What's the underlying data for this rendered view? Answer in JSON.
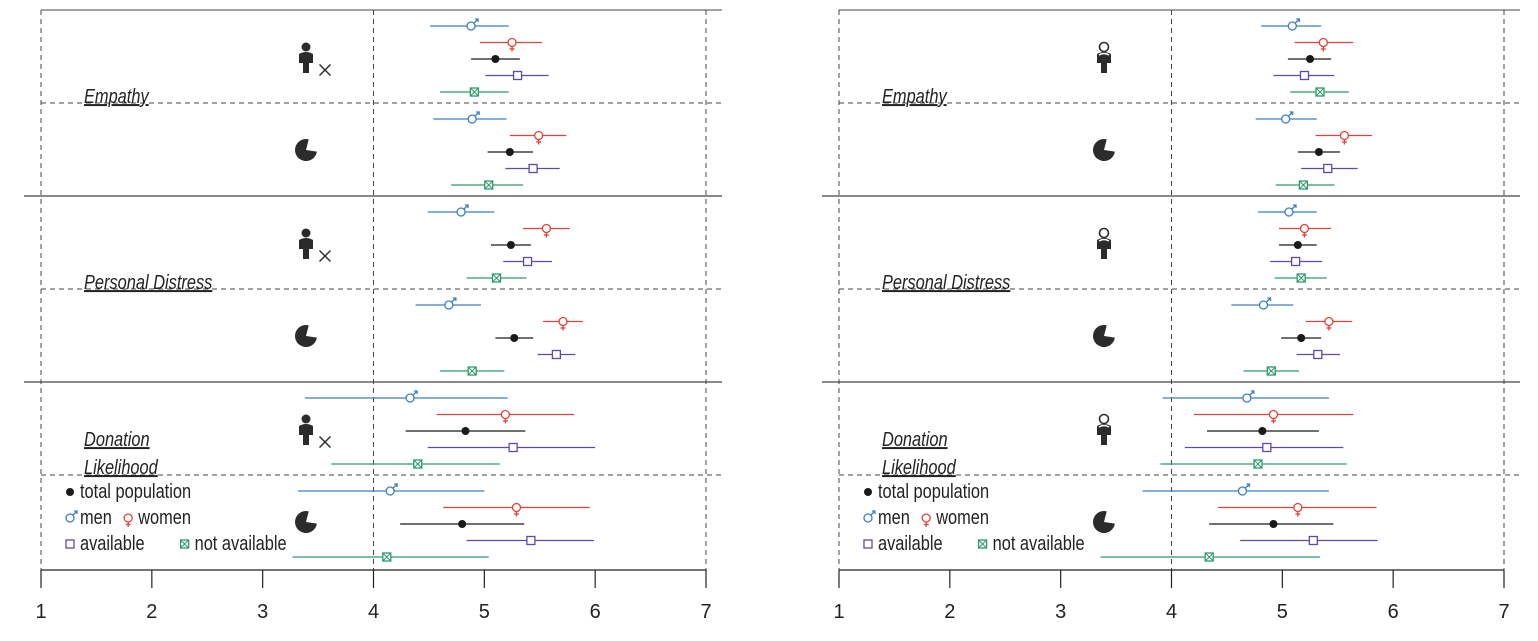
{
  "colors": {
    "total population": "#1a1a1a",
    "men": "#3b7fc4",
    "women": "#e0423a",
    "available": "#5b4ab0",
    "not available": "#2e9a6b",
    "axis": "#222222",
    "grid": "#444444",
    "icon": "#2b2b2b"
  },
  "chart_data": [
    {
      "type": "dot-and-whisker",
      "panel": "left",
      "xlim": [
        1,
        7
      ],
      "xticks": [
        "1",
        "2",
        "3",
        "4",
        "5",
        "6",
        "7"
      ],
      "reference_line": 4,
      "icons": [
        "person-crossed-icon",
        "pie-icon"
      ],
      "legend": {
        "items": [
          {
            "series": "total population",
            "label": "total population"
          },
          {
            "series": "men",
            "label": "men"
          },
          {
            "series": "women",
            "label": "women"
          },
          {
            "series": "available",
            "label": "available"
          },
          {
            "series": "not available",
            "label": "not available"
          }
        ]
      },
      "groups": [
        {
          "label": "Empathy",
          "rows": [
            {
              "icon": "person-crossed-icon",
              "points": [
                {
                  "series": "men",
                  "mean": 4.88,
                  "lo": 4.51,
                  "hi": 5.22
                },
                {
                  "series": "women",
                  "mean": 5.25,
                  "lo": 4.96,
                  "hi": 5.52
                },
                {
                  "series": "total population",
                  "mean": 5.1,
                  "lo": 4.88,
                  "hi": 5.32
                },
                {
                  "series": "available",
                  "mean": 5.3,
                  "lo": 5.01,
                  "hi": 5.58
                },
                {
                  "series": "not available",
                  "mean": 4.91,
                  "lo": 4.6,
                  "hi": 5.22
                }
              ]
            },
            {
              "icon": "pie-icon",
              "points": [
                {
                  "series": "men",
                  "mean": 4.89,
                  "lo": 4.54,
                  "hi": 5.2
                },
                {
                  "series": "women",
                  "mean": 5.49,
                  "lo": 5.23,
                  "hi": 5.74
                },
                {
                  "series": "total population",
                  "mean": 5.23,
                  "lo": 5.03,
                  "hi": 5.44
                },
                {
                  "series": "available",
                  "mean": 5.44,
                  "lo": 5.19,
                  "hi": 5.68
                },
                {
                  "series": "not available",
                  "mean": 5.04,
                  "lo": 4.7,
                  "hi": 5.35
                }
              ]
            }
          ]
        },
        {
          "label": "Personal Distress",
          "rows": [
            {
              "icon": "person-crossed-icon",
              "points": [
                {
                  "series": "men",
                  "mean": 4.79,
                  "lo": 4.49,
                  "hi": 5.09
                },
                {
                  "series": "women",
                  "mean": 5.56,
                  "lo": 5.35,
                  "hi": 5.77
                },
                {
                  "series": "total population",
                  "mean": 5.24,
                  "lo": 5.06,
                  "hi": 5.42
                },
                {
                  "series": "available",
                  "mean": 5.39,
                  "lo": 5.17,
                  "hi": 5.61
                },
                {
                  "series": "not available",
                  "mean": 5.11,
                  "lo": 4.84,
                  "hi": 5.38
                }
              ]
            },
            {
              "icon": "pie-icon",
              "points": [
                {
                  "series": "men",
                  "mean": 4.68,
                  "lo": 4.38,
                  "hi": 4.97
                },
                {
                  "series": "women",
                  "mean": 5.71,
                  "lo": 5.53,
                  "hi": 5.89
                },
                {
                  "series": "total population",
                  "mean": 5.27,
                  "lo": 5.1,
                  "hi": 5.44
                },
                {
                  "series": "available",
                  "mean": 5.65,
                  "lo": 5.48,
                  "hi": 5.82
                },
                {
                  "series": "not available",
                  "mean": 4.89,
                  "lo": 4.6,
                  "hi": 5.18
                }
              ]
            }
          ]
        },
        {
          "label": "Donation Likelihood",
          "rows": [
            {
              "icon": "person-crossed-icon",
              "points": [
                {
                  "series": "men",
                  "mean": 4.33,
                  "lo": 3.38,
                  "hi": 5.21
                },
                {
                  "series": "women",
                  "mean": 5.19,
                  "lo": 4.57,
                  "hi": 5.81
                },
                {
                  "series": "total population",
                  "mean": 4.83,
                  "lo": 4.29,
                  "hi": 5.37
                },
                {
                  "series": "available",
                  "mean": 5.26,
                  "lo": 4.49,
                  "hi": 6.0
                },
                {
                  "series": "not available",
                  "mean": 4.4,
                  "lo": 3.62,
                  "hi": 5.14
                }
              ]
            },
            {
              "icon": "pie-icon",
              "points": [
                {
                  "series": "men",
                  "mean": 4.15,
                  "lo": 3.32,
                  "hi": 5.0
                },
                {
                  "series": "women",
                  "mean": 5.29,
                  "lo": 4.63,
                  "hi": 5.95
                },
                {
                  "series": "total population",
                  "mean": 4.8,
                  "lo": 4.24,
                  "hi": 5.36
                },
                {
                  "series": "available",
                  "mean": 5.42,
                  "lo": 4.84,
                  "hi": 5.99
                },
                {
                  "series": "not available",
                  "mean": 4.12,
                  "lo": 3.27,
                  "hi": 5.04
                }
              ]
            }
          ]
        }
      ]
    },
    {
      "type": "dot-and-whisker",
      "panel": "right",
      "xlim": [
        1,
        7
      ],
      "xticks": [
        "1",
        "2",
        "3",
        "4",
        "5",
        "6",
        "7"
      ],
      "reference_line": 4,
      "icons": [
        "person-outline-icon",
        "pie-icon"
      ],
      "legend": {
        "items": [
          {
            "series": "total population",
            "label": "total population"
          },
          {
            "series": "men",
            "label": "men"
          },
          {
            "series": "women",
            "label": "women"
          },
          {
            "series": "available",
            "label": "available"
          },
          {
            "series": "not available",
            "label": "not available"
          }
        ]
      },
      "groups": [
        {
          "label": "Empathy",
          "rows": [
            {
              "icon": "person-outline-icon",
              "points": [
                {
                  "series": "men",
                  "mean": 5.09,
                  "lo": 4.81,
                  "hi": 5.35
                },
                {
                  "series": "women",
                  "mean": 5.37,
                  "lo": 5.11,
                  "hi": 5.64
                },
                {
                  "series": "total population",
                  "mean": 5.25,
                  "lo": 5.05,
                  "hi": 5.44
                },
                {
                  "series": "available",
                  "mean": 5.2,
                  "lo": 4.92,
                  "hi": 5.47
                },
                {
                  "series": "not available",
                  "mean": 5.34,
                  "lo": 5.07,
                  "hi": 5.6
                }
              ]
            },
            {
              "icon": "pie-icon",
              "points": [
                {
                  "series": "men",
                  "mean": 5.03,
                  "lo": 4.76,
                  "hi": 5.31
                },
                {
                  "series": "women",
                  "mean": 5.56,
                  "lo": 5.3,
                  "hi": 5.81
                },
                {
                  "series": "total population",
                  "mean": 5.33,
                  "lo": 5.14,
                  "hi": 5.52
                },
                {
                  "series": "available",
                  "mean": 5.41,
                  "lo": 5.17,
                  "hi": 5.68
                },
                {
                  "series": "not available",
                  "mean": 5.19,
                  "lo": 4.94,
                  "hi": 5.47
                }
              ]
            }
          ]
        },
        {
          "label": "Personal Distress",
          "rows": [
            {
              "icon": "person-outline-icon",
              "points": [
                {
                  "series": "men",
                  "mean": 5.06,
                  "lo": 4.78,
                  "hi": 5.31
                },
                {
                  "series": "women",
                  "mean": 5.2,
                  "lo": 4.97,
                  "hi": 5.44
                },
                {
                  "series": "total population",
                  "mean": 5.14,
                  "lo": 4.97,
                  "hi": 5.31
                },
                {
                  "series": "available",
                  "mean": 5.12,
                  "lo": 4.89,
                  "hi": 5.36
                },
                {
                  "series": "not available",
                  "mean": 5.17,
                  "lo": 4.93,
                  "hi": 5.4
                }
              ]
            },
            {
              "icon": "pie-icon",
              "points": [
                {
                  "series": "men",
                  "mean": 4.83,
                  "lo": 4.54,
                  "hi": 5.1
                },
                {
                  "series": "women",
                  "mean": 5.42,
                  "lo": 5.21,
                  "hi": 5.63
                },
                {
                  "series": "total population",
                  "mean": 5.17,
                  "lo": 4.99,
                  "hi": 5.35
                },
                {
                  "series": "available",
                  "mean": 5.32,
                  "lo": 5.13,
                  "hi": 5.52
                },
                {
                  "series": "not available",
                  "mean": 4.9,
                  "lo": 4.65,
                  "hi": 5.15
                }
              ]
            }
          ]
        },
        {
          "label": "Donation Likelihood",
          "rows": [
            {
              "icon": "person-outline-icon",
              "points": [
                {
                  "series": "men",
                  "mean": 4.68,
                  "lo": 3.92,
                  "hi": 5.42
                },
                {
                  "series": "women",
                  "mean": 4.92,
                  "lo": 4.2,
                  "hi": 5.64
                },
                {
                  "series": "total population",
                  "mean": 4.82,
                  "lo": 4.32,
                  "hi": 5.33
                },
                {
                  "series": "available",
                  "mean": 4.86,
                  "lo": 4.12,
                  "hi": 5.55
                },
                {
                  "series": "not available",
                  "mean": 4.78,
                  "lo": 3.9,
                  "hi": 5.58
                }
              ]
            },
            {
              "icon": "pie-icon",
              "points": [
                {
                  "series": "men",
                  "mean": 4.64,
                  "lo": 3.74,
                  "hi": 5.42
                },
                {
                  "series": "women",
                  "mean": 5.14,
                  "lo": 4.42,
                  "hi": 5.85
                },
                {
                  "series": "total population",
                  "mean": 4.92,
                  "lo": 4.34,
                  "hi": 5.46
                },
                {
                  "series": "available",
                  "mean": 5.28,
                  "lo": 4.62,
                  "hi": 5.86
                },
                {
                  "series": "not available",
                  "mean": 4.34,
                  "lo": 3.36,
                  "hi": 5.34
                }
              ]
            }
          ]
        }
      ]
    }
  ]
}
